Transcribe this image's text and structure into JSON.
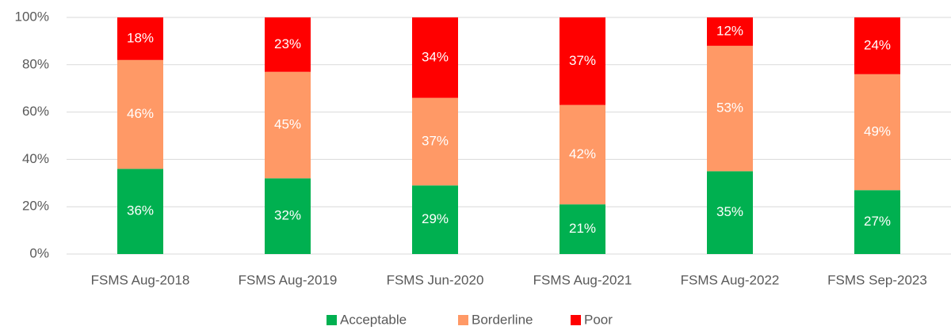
{
  "chart_data": {
    "type": "stacked_bar",
    "categories": [
      "FSMS Aug-2018",
      "FSMS Aug-2019",
      "FSMS Jun-2020",
      "FSMS Aug-2021",
      "FSMS Aug-2022",
      "FSMS Sep-2023"
    ],
    "series": [
      {
        "name": "Acceptable",
        "color": "#00b050",
        "values": [
          36,
          32,
          29,
          21,
          35,
          27
        ],
        "value_labels": [
          "36%",
          "32%",
          "29%",
          "21%",
          "35%",
          "27%"
        ]
      },
      {
        "name": "Borderline",
        "color": "#ff9966",
        "values": [
          46,
          45,
          37,
          42,
          53,
          49
        ],
        "value_labels": [
          "46%",
          "45%",
          "37%",
          "42%",
          "53%",
          "49%"
        ]
      },
      {
        "name": "Poor",
        "color": "#ff0000",
        "values": [
          18,
          23,
          34,
          37,
          12,
          24
        ],
        "value_labels": [
          "18%",
          "23%",
          "34%",
          "37%",
          "12%",
          "24%"
        ]
      }
    ],
    "ylim": [
      0,
      100
    ],
    "yticks": [
      {
        "value": 0,
        "label": "0%"
      },
      {
        "value": 20,
        "label": "20%"
      },
      {
        "value": 40,
        "label": "40%"
      },
      {
        "value": 60,
        "label": "60%"
      },
      {
        "value": 80,
        "label": "80%"
      },
      {
        "value": 100,
        "label": "100%"
      }
    ],
    "grid": true,
    "legend": "bottom"
  }
}
